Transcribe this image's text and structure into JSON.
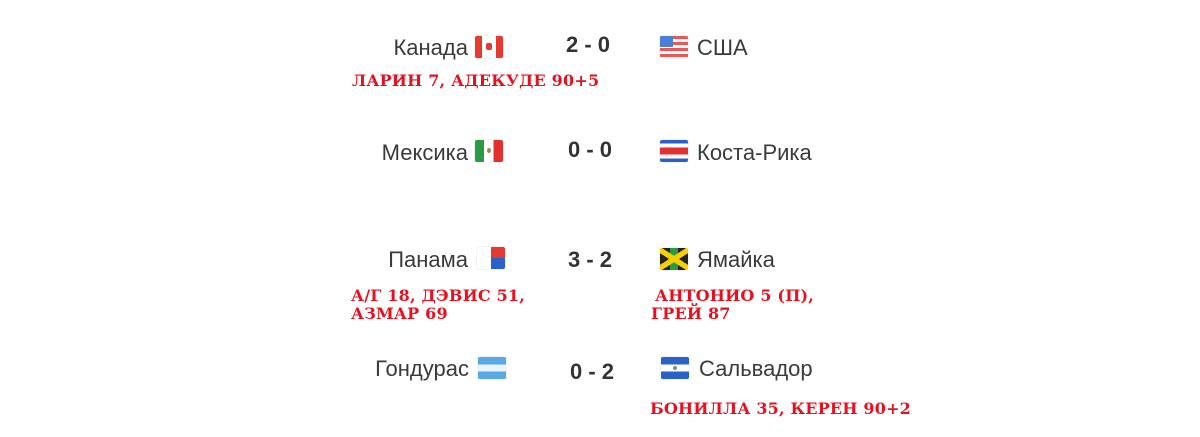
{
  "matches": [
    {
      "home": "Канада",
      "home_flag": "canada-flag",
      "score": "2 - 0",
      "away": "США",
      "away_flag": "usa-flag",
      "home_scorers": [
        "ЛАРИН 7, АДЕКУДЕ 90+5"
      ],
      "away_scorers": []
    },
    {
      "home": "Мексика",
      "home_flag": "mexico-flag",
      "score": "0 - 0",
      "away": "Коста-Рика",
      "away_flag": "costa-rica-flag",
      "home_scorers": [],
      "away_scorers": []
    },
    {
      "home": "Панама",
      "home_flag": "panama-flag",
      "score": "3 - 2",
      "away": "Ямайка",
      "away_flag": "jamaica-flag",
      "home_scorers": [
        "А/Г 18, ДЭВИС 51,",
        "АЗМАР 69"
      ],
      "away_scorers": [
        "АНТОНИО 5 (П),",
        "ГРЕЙ 87"
      ]
    },
    {
      "home": "Гондурас",
      "home_flag": "honduras-flag",
      "score": "0 - 2",
      "away": "Сальвадор",
      "away_flag": "el-salvador-flag",
      "home_scorers": [],
      "away_scorers": [
        "БОНИЛЛА 35, КЕРЕН 90+2"
      ]
    }
  ],
  "colors": {
    "scorers": "#e8101e",
    "team_text": "#3a3a3a",
    "score_text": "#333333"
  }
}
